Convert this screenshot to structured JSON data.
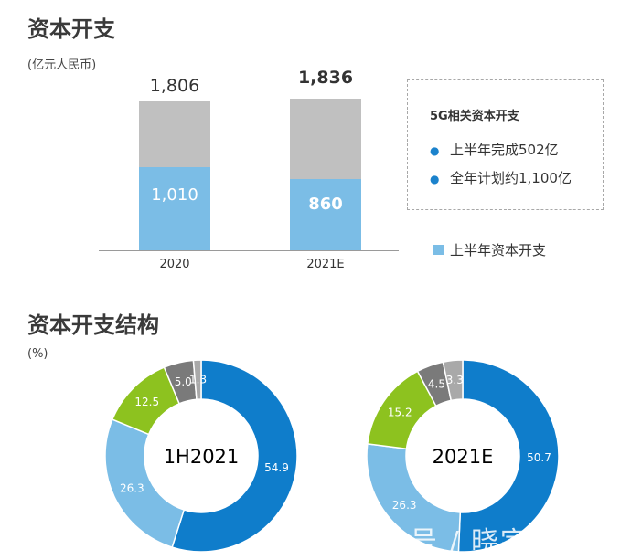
{
  "section1": {
    "title": "资本开支",
    "unit": "(亿元人民币)"
  },
  "section2": {
    "title": "资本开支结构",
    "unit": "(%)"
  },
  "info_box": {
    "title": "5G相关资本开支",
    "items": [
      "上半年完成502亿",
      "全年计划约1,100亿"
    ]
  },
  "colors": {
    "gray": "#c0c0c0",
    "light_blue": "#7bbde6",
    "blue": "#0f7dcb",
    "green": "#8dc21f",
    "dark_gray": "#7a7a7a",
    "mid_gray": "#a9a9a9"
  },
  "chart_data": [
    {
      "type": "bar",
      "stacked": true,
      "categories": [
        "2020",
        "2021E"
      ],
      "totals": [
        "1,806",
        "1,836"
      ],
      "series": [
        {
          "name": "上半年资本开支",
          "values": [
            1010,
            860
          ],
          "labels": [
            "1,010",
            "860"
          ]
        },
        {
          "values": [
            796,
            976
          ]
        }
      ],
      "legend_position": "bottom-right"
    },
    {
      "type": "pie",
      "donut": true,
      "center_label": "1H2021",
      "values": [
        54.9,
        26.3,
        12.5,
        5.0,
        1.3
      ],
      "labels": [
        "54.9",
        "26.3",
        "12.5",
        "5.0",
        "1.3"
      ]
    },
    {
      "type": "pie",
      "donut": true,
      "center_label": "2021E",
      "values": [
        50.7,
        26.3,
        15.2,
        4.5,
        3.3
      ],
      "labels": [
        "50.7",
        "26.3",
        "15.2",
        "4.5",
        "3.3"
      ]
    }
  ]
}
